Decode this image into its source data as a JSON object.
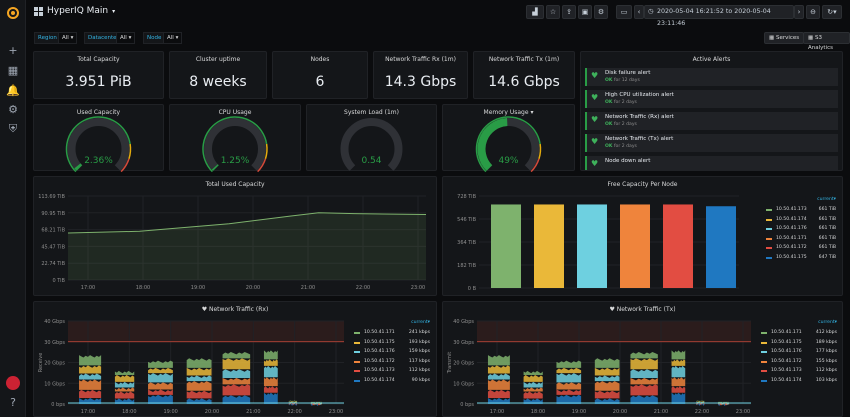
{
  "app": {
    "title": "HyperIQ Main"
  },
  "topbar": {
    "time_range": "2020-05-04 16:21:52 to 2020-05-04 23:11:46"
  },
  "variables": [
    {
      "label": "Region",
      "value": "All"
    },
    {
      "label": "Datacenter",
      "value": "All"
    },
    {
      "label": "Node",
      "value": "All"
    }
  ],
  "links": {
    "services": "Services",
    "s3": "S3 Analytics"
  },
  "stats": [
    {
      "title": "Total Capacity",
      "value": "3.951 PiB"
    },
    {
      "title": "Cluster uptime",
      "value": "8 weeks"
    },
    {
      "title": "Nodes",
      "value": "6"
    },
    {
      "title": "Network Traffic Rx (1m)",
      "value": "14.3 Gbps"
    },
    {
      "title": "Network Traffic Tx (1m)",
      "value": "14.6 Gbps"
    }
  ],
  "gauges": [
    {
      "title": "Used Capacity",
      "value": "2.36%",
      "fraction": 0.0236
    },
    {
      "title": "CPU Usage",
      "value": "1.25%",
      "fraction": 0.0125
    },
    {
      "title": "System Load  (1m)",
      "value": "0.54",
      "fraction": 0.0
    },
    {
      "title": "Memory Usage",
      "value": "49%",
      "fraction": 0.49
    }
  ],
  "alerts": {
    "title": "Active Alerts",
    "items": [
      {
        "name": "Disk failure alert",
        "state": "OK",
        "since": "for 12 days"
      },
      {
        "name": "High CPU utilization alert",
        "state": "OK",
        "since": "for 2 days"
      },
      {
        "name": "Network Traffic (Rx) alert",
        "state": "OK",
        "since": "for 2 days"
      },
      {
        "name": "Network Traffic (Tx) alert",
        "state": "OK",
        "since": "for 2 days"
      },
      {
        "name": "Node down alert",
        "state": "",
        "since": ""
      }
    ]
  },
  "total_used": {
    "title": "Total Used Capacity",
    "y_ticks": [
      "113.69 TiB",
      "90.95 TiB",
      "68.21 TiB",
      "45.47 TiB",
      "22.74 TiB",
      "0 TiB"
    ],
    "x_ticks": [
      "17:00",
      "18:00",
      "19:00",
      "20:00",
      "21:00",
      "22:00",
      "23:00"
    ]
  },
  "free_capacity": {
    "title": "Free Capacity Per Node",
    "legend_header": "current▾",
    "y_ticks": [
      "728 TiB",
      "546 TiB",
      "364 TiB",
      "182 TiB",
      "0 B"
    ],
    "legend": [
      {
        "name": "10.50.41.173",
        "value": "661 TiB",
        "color": "#7eb26d"
      },
      {
        "name": "10.50.41.174",
        "value": "661 TiB",
        "color": "#eab839"
      },
      {
        "name": "10.50.41.176",
        "value": "661 TiB",
        "color": "#6ed0e0"
      },
      {
        "name": "10.50.41.171",
        "value": "661 TiB",
        "color": "#ef843c"
      },
      {
        "name": "10.50.41.172",
        "value": "661 TiB",
        "color": "#e24d42"
      },
      {
        "name": "10.50.41.175",
        "value": "647 TiB",
        "color": "#1f78c1"
      }
    ]
  },
  "rx": {
    "title": "Network Traffic (Rx)",
    "ylabel": "Receive",
    "legend_header": "current▾",
    "y_ticks": [
      "40 Gbps",
      "30 Gbps",
      "20 Gbps",
      "10 Gbps",
      "0 bps"
    ],
    "x_ticks": [
      "17:00",
      "18:00",
      "19:00",
      "20:00",
      "21:00",
      "22:00",
      "23:00"
    ],
    "legend": [
      {
        "name": "10.50.41.171",
        "value": "241 kbps",
        "color": "#7eb26d"
      },
      {
        "name": "10.50.41.175",
        "value": "193 kbps",
        "color": "#eab839"
      },
      {
        "name": "10.50.41.176",
        "value": "159 kbps",
        "color": "#6ed0e0"
      },
      {
        "name": "10.50.41.172",
        "value": "117 kbps",
        "color": "#ef843c"
      },
      {
        "name": "10.50.41.173",
        "value": "112 kbps",
        "color": "#e24d42"
      },
      {
        "name": "10.50.41.174",
        "value": "90 kbps",
        "color": "#1f78c1"
      }
    ]
  },
  "tx": {
    "title": "Network Traffic (Tx)",
    "ylabel": "Transmit",
    "legend_header": "current▾",
    "y_ticks": [
      "40 Gbps",
      "30 Gbps",
      "20 Gbps",
      "10 Gbps",
      "0 bps"
    ],
    "x_ticks": [
      "17:00",
      "18:00",
      "19:00",
      "20:00",
      "21:00",
      "22:00",
      "23:00"
    ],
    "legend": [
      {
        "name": "10.50.41.171",
        "value": "412 kbps",
        "color": "#7eb26d"
      },
      {
        "name": "10.50.41.175",
        "value": "189 kbps",
        "color": "#eab839"
      },
      {
        "name": "10.50.41.176",
        "value": "177 kbps",
        "color": "#6ed0e0"
      },
      {
        "name": "10.50.41.172",
        "value": "155 kbps",
        "color": "#ef843c"
      },
      {
        "name": "10.50.41.173",
        "value": "112 kbps",
        "color": "#e24d42"
      },
      {
        "name": "10.50.41.174",
        "value": "103 kbps",
        "color": "#1f78c1"
      }
    ]
  }
}
